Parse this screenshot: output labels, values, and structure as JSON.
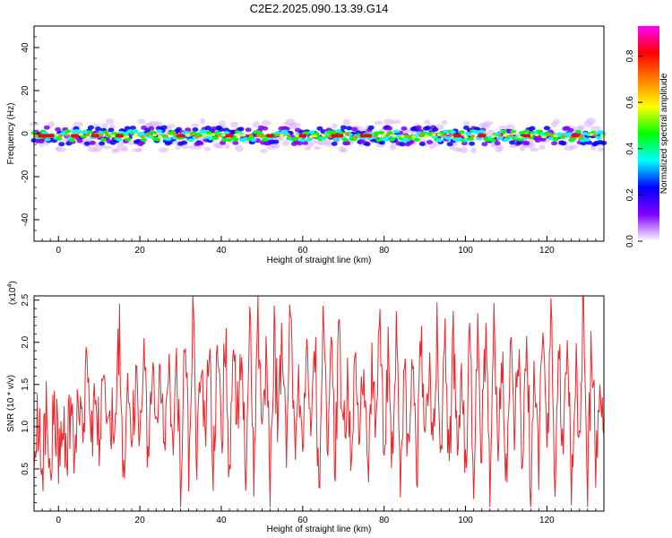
{
  "title": "C2E2.2025.090.13.39.G14",
  "chart_data": [
    {
      "type": "heatmap",
      "title": "C2E2.2025.090.13.39.G14",
      "xlabel": "Height of straight line (km)",
      "ylabel": "Frequency (Hz)",
      "xlim": [
        -6,
        134
      ],
      "ylim": [
        -50,
        50
      ],
      "x_ticks": [
        0,
        20,
        40,
        60,
        80,
        100,
        120
      ],
      "y_ticks": [
        -40,
        -20,
        0,
        20,
        40
      ],
      "colorbar": {
        "label": "Normalized spectral amplitude",
        "range": [
          0,
          0.93
        ],
        "ticks": [
          0.0,
          0.2,
          0.4,
          0.6,
          0.8
        ],
        "colormap": [
          "#ffffff",
          "#8000ff",
          "#0000ff",
          "#00ffff",
          "#00ff00",
          "#ffff00",
          "#ff8000",
          "#ff0000",
          "#ff00ff"
        ]
      },
      "description_band": {
        "center_hz": -1,
        "half_width_hz": 4
      },
      "peak_segments_x": [
        [
          -5,
          -1
        ],
        [
          3,
          5
        ],
        [
          8,
          10
        ],
        [
          14,
          16
        ],
        [
          29,
          31
        ],
        [
          41,
          43
        ],
        [
          51,
          53
        ],
        [
          59,
          61
        ],
        [
          67,
          70
        ],
        [
          74,
          77
        ],
        [
          97,
          99
        ],
        [
          103,
          105
        ],
        [
          114,
          116
        ],
        [
          126,
          128
        ]
      ]
    },
    {
      "type": "line",
      "xlabel": "Height of straight line (km)",
      "ylabel": "SNR (10 * v/v)",
      "y_multiplier_label": "(x10",
      "y_multiplier_exp": "4",
      "y_multiplier_close": ")",
      "xlim": [
        -6,
        134
      ],
      "ylim": [
        0,
        2.55
      ],
      "x_ticks": [
        0,
        20,
        40,
        60,
        80,
        100,
        120
      ],
      "y_ticks": [
        0.5,
        1.0,
        1.5,
        2.0,
        2.5
      ],
      "line_color": "#e8282d",
      "series": [
        {
          "x": [
            -6,
            -5,
            -4,
            -3,
            -2,
            -1,
            0,
            1,
            2,
            3,
            4,
            5,
            6,
            7,
            8,
            9,
            10,
            11,
            12,
            13,
            14,
            15,
            16,
            17,
            18,
            19,
            20,
            21,
            22,
            23,
            24,
            25,
            26,
            27,
            28,
            29,
            30,
            31,
            32,
            33,
            34,
            35,
            36,
            37,
            38,
            39,
            40,
            41,
            42,
            43,
            44,
            45,
            46,
            47,
            48,
            49,
            50,
            51,
            52,
            53,
            54,
            55,
            56,
            57,
            58,
            59,
            60,
            61,
            62,
            63,
            64,
            65,
            66,
            67,
            68,
            69,
            70,
            71,
            72,
            73,
            74,
            75,
            76,
            77,
            78,
            79,
            80,
            81,
            82,
            83,
            84,
            85,
            86,
            87,
            88,
            89,
            90,
            91,
            92,
            93,
            94,
            95,
            96,
            97,
            98,
            99,
            100,
            101,
            102,
            103,
            104,
            105,
            106,
            107,
            108,
            109,
            110,
            111,
            112,
            113,
            114,
            115,
            116,
            117,
            118,
            119,
            120,
            121,
            122,
            123,
            124,
            125,
            126,
            127,
            128,
            129,
            130,
            131,
            132,
            133,
            134
          ],
          "y": [
            0.4,
            1.1,
            0.5,
            1.2,
            0.3,
            1.4,
            0.6,
            1.0,
            0.7,
            1.2,
            0.8,
            1.5,
            0.9,
            1.8,
            0.6,
            1.3,
            0.9,
            1.6,
            0.7,
            1.1,
            1.3,
            2.1,
            0.5,
            1.7,
            0.8,
            1.5,
            0.6,
            1.9,
            0.7,
            1.4,
            1.0,
            2.0,
            0.5,
            1.6,
            0.8,
            1.8,
            0.3,
            2.3,
            0.6,
            2.4,
            0.4,
            1.8,
            0.9,
            2.2,
            0.5,
            1.9,
            0.7,
            2.1,
            0.3,
            1.7,
            1.2,
            2.0,
            0.6,
            2.2,
            0.4,
            2.3,
            0.8,
            1.9,
            0.2,
            2.0,
            1.0,
            2.1,
            0.5,
            2.4,
            0.7,
            1.8,
            0.4,
            2.3,
            0.6,
            2.0,
            0.3,
            2.2,
            0.9,
            1.9,
            0.5,
            2.3,
            0.7,
            1.7,
            0.4,
            2.1,
            0.6,
            2.0,
            0.3,
            1.8,
            0.8,
            2.3,
            0.5,
            1.9,
            0.7,
            2.2,
            0.4,
            1.8,
            0.6,
            2.0,
            0.3,
            2.1,
            0.8,
            1.7,
            0.5,
            2.2,
            0.6,
            1.9,
            0.4,
            2.0,
            0.7,
            1.8,
            0.3,
            2.2,
            0.5,
            1.9,
            0.8,
            2.0,
            0.4,
            2.3,
            0.6,
            1.8,
            0.3,
            2.1,
            0.7,
            2.0,
            0.5,
            2.4,
            0.2,
            1.9,
            0.6,
            2.3,
            0.4,
            2.5,
            0.1,
            2.0,
            0.7,
            2.4,
            0.3,
            1.8,
            0.6,
            2.5,
            0.2,
            2.1,
            0.5,
            1.7,
            0.9
          ]
        }
      ]
    }
  ]
}
